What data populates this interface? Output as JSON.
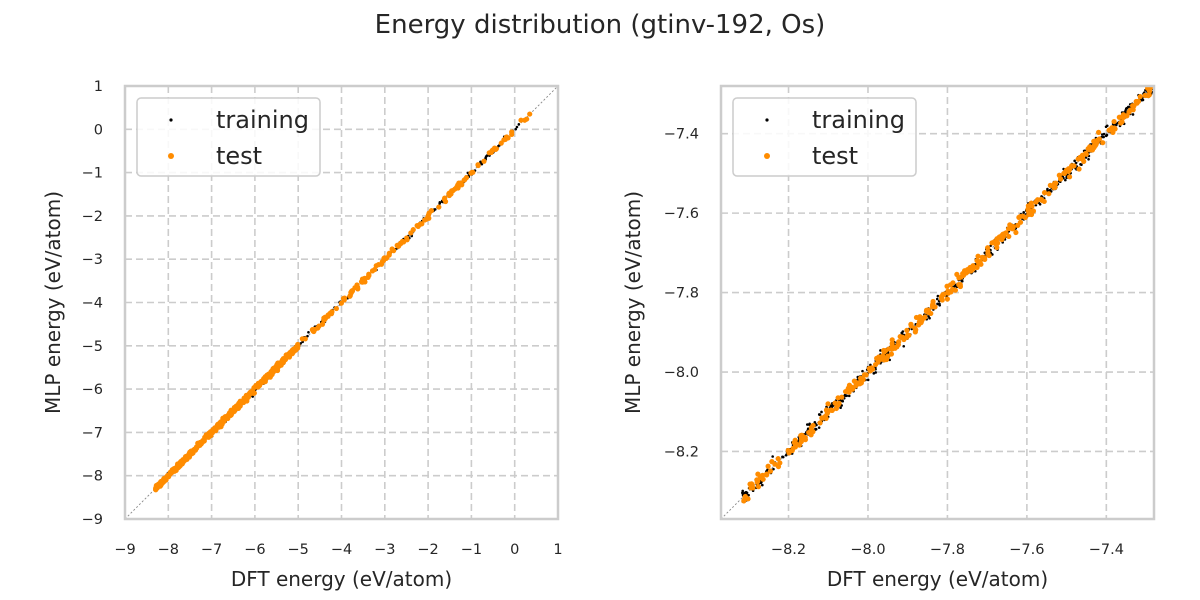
{
  "figure": {
    "title": "Energy distribution (gtinv-192, Os)"
  },
  "colors": {
    "training": "#000000",
    "test": "#ff8c00",
    "grid": "#cccccc",
    "frame": "#cccccc",
    "diagonal": "#888888"
  },
  "chart_data": [
    {
      "type": "scatter",
      "xlabel": "DFT energy (eV/atom)",
      "ylabel": "MLP energy (eV/atom)",
      "xlim": [
        -9,
        1
      ],
      "ylim": [
        -9,
        1
      ],
      "xticks": [
        -9,
        -8,
        -7,
        -6,
        -5,
        -4,
        -3,
        -2,
        -1,
        0,
        1
      ],
      "yticks": [
        -9,
        -8,
        -7,
        -6,
        -5,
        -4,
        -3,
        -2,
        -1,
        0,
        1
      ],
      "xtick_labels": [
        "−9",
        "−8",
        "−7",
        "−6",
        "−5",
        "−4",
        "−3",
        "−2",
        "−1",
        "0",
        "1"
      ],
      "ytick_labels": [
        "−9",
        "−8",
        "−7",
        "−6",
        "−5",
        "−4",
        "−3",
        "−2",
        "−1",
        "0",
        "1"
      ],
      "grid": true,
      "diagonal_line": true,
      "legend": {
        "position": "upper-left",
        "entries": [
          "training",
          "test"
        ]
      },
      "series": [
        {
          "name": "training",
          "x_range": [
            -8.33,
            0.1
          ],
          "y_range": [
            -8.33,
            0.1
          ]
        },
        {
          "name": "test",
          "x_range": [
            -8.32,
            0.35
          ],
          "y_range": [
            -8.32,
            0.28
          ]
        }
      ]
    },
    {
      "type": "scatter",
      "xlabel": "DFT energy (eV/atom)",
      "ylabel": "MLP energy (eV/atom)",
      "xlim": [
        -8.37,
        -7.28
      ],
      "ylim": [
        -8.37,
        -7.28
      ],
      "xticks": [
        -8.2,
        -8.0,
        -7.8,
        -7.6,
        -7.4
      ],
      "yticks": [
        -8.2,
        -8.0,
        -7.8,
        -7.6,
        -7.4
      ],
      "xtick_labels": [
        "−8.2",
        "−8.0",
        "−7.8",
        "−7.6",
        "−7.4"
      ],
      "ytick_labels": [
        "−8.2",
        "−8.0",
        "−7.8",
        "−7.6",
        "−7.4"
      ],
      "grid": true,
      "diagonal_line": true,
      "legend": {
        "position": "upper-left",
        "entries": [
          "training",
          "test"
        ]
      },
      "series": [
        {
          "name": "training",
          "x_range": [
            -8.32,
            -7.28
          ],
          "y_range": [
            -8.32,
            -7.28
          ]
        },
        {
          "name": "test",
          "x_range": [
            -8.32,
            -7.28
          ],
          "y_range": [
            -8.32,
            -7.28
          ]
        }
      ]
    }
  ]
}
